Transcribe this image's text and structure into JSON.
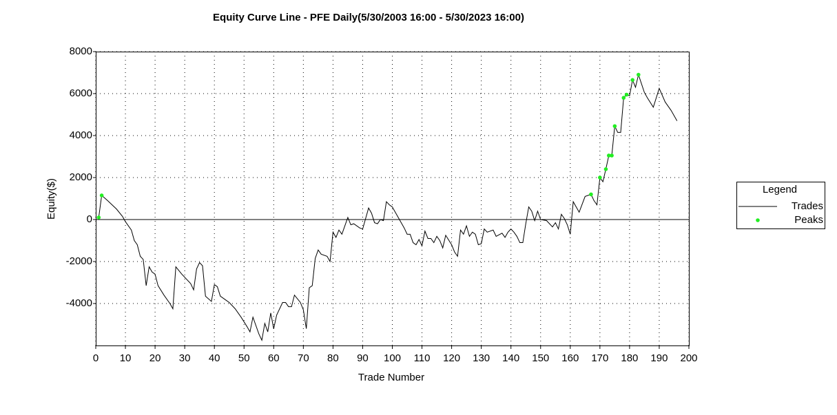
{
  "chart_data": {
    "type": "line",
    "title": "Equity Curve Line - PFE Daily(5/30/2003 16:00 - 5/30/2023 16:00)",
    "x_label": "Trade Number",
    "y_label": "Equity($)",
    "legend_title": "Legend",
    "legend": "right",
    "grid": true,
    "xlim": [
      0,
      200
    ],
    "xticks": [
      0,
      10,
      20,
      30,
      40,
      50,
      60,
      70,
      80,
      90,
      100,
      110,
      120,
      130,
      140,
      150,
      160,
      170,
      180,
      190,
      200
    ],
    "ylim": [
      -6000,
      8000
    ],
    "yticks": [
      -4000,
      -2000,
      0,
      2000,
      4000,
      6000,
      8000
    ],
    "series": [
      {
        "name": "Trades",
        "type": "line",
        "color": "#000000",
        "x": [
          1,
          2,
          4,
          7,
          9,
          10,
          12,
          13,
          14,
          15,
          16,
          17,
          18,
          19,
          20,
          21,
          23,
          25,
          26,
          27,
          29,
          32,
          33,
          34,
          35,
          36,
          37,
          39,
          40,
          41,
          42,
          44,
          45,
          47,
          49,
          51,
          52,
          53,
          55,
          56,
          57,
          58,
          59,
          60,
          61,
          63,
          64,
          65,
          66,
          67,
          69,
          70,
          71,
          72,
          73,
          74,
          75,
          76,
          78,
          79,
          80,
          81,
          82,
          83,
          85,
          86,
          87,
          89,
          90,
          92,
          93,
          94,
          95,
          96,
          97,
          98,
          99,
          100,
          101,
          102,
          103,
          104,
          105,
          106,
          107,
          108,
          109,
          110,
          111,
          112,
          113,
          114,
          115,
          116,
          117,
          118,
          120,
          121,
          122,
          123,
          124,
          125,
          126,
          127,
          128,
          129,
          130,
          131,
          132,
          134,
          135,
          137,
          138,
          139,
          140,
          141,
          142,
          143,
          144,
          145,
          146,
          147,
          148,
          149,
          150,
          152,
          154,
          155,
          156,
          157,
          158,
          159,
          160,
          161,
          163,
          165,
          167,
          168,
          169,
          170,
          171,
          172,
          173,
          174,
          175,
          176,
          177,
          178,
          179,
          180,
          181,
          182,
          183,
          185,
          186,
          188,
          190,
          192,
          194,
          196
        ],
        "values": [
          100,
          1150,
          900,
          500,
          150,
          -100,
          -500,
          -1000,
          -1200,
          -1750,
          -1900,
          -3150,
          -2250,
          -2500,
          -2600,
          -3150,
          -3600,
          -4000,
          -4250,
          -2250,
          -2600,
          -3050,
          -3350,
          -2350,
          -2050,
          -2200,
          -3650,
          -3900,
          -3100,
          -3200,
          -3650,
          -3850,
          -3950,
          -4250,
          -4650,
          -5100,
          -5350,
          -4650,
          -5450,
          -5750,
          -4950,
          -5350,
          -4450,
          -5200,
          -4550,
          -3950,
          -3950,
          -4150,
          -4150,
          -3600,
          -3950,
          -4300,
          -5200,
          -3250,
          -3150,
          -1850,
          -1450,
          -1650,
          -1750,
          -2000,
          -600,
          -850,
          -500,
          -700,
          100,
          -250,
          -200,
          -400,
          -450,
          550,
          300,
          -150,
          -200,
          0,
          -50,
          850,
          700,
          600,
          350,
          100,
          -150,
          -400,
          -700,
          -700,
          -1100,
          -1200,
          -950,
          -1250,
          -550,
          -900,
          -900,
          -1100,
          -800,
          -1000,
          -1350,
          -750,
          -1200,
          -1550,
          -1750,
          -500,
          -700,
          -300,
          -800,
          -600,
          -700,
          -1200,
          -1150,
          -450,
          -600,
          -500,
          -800,
          -650,
          -850,
          -600,
          -450,
          -600,
          -800,
          -1100,
          -1100,
          -200,
          600,
          400,
          -50,
          400,
          0,
          -50,
          -350,
          -150,
          -450,
          250,
          50,
          -250,
          -700,
          850,
          350,
          1100,
          1200,
          900,
          700,
          2000,
          1800,
          2400,
          3050,
          3050,
          4450,
          4150,
          4150,
          5800,
          5950,
          5900,
          6650,
          6300,
          6900,
          6050,
          5800,
          5350,
          6250,
          5600,
          5200,
          4700
        ]
      },
      {
        "name": "Peaks",
        "type": "scatter",
        "color": "#22ee22",
        "x": [
          1,
          2,
          167,
          170,
          172,
          173,
          174,
          175,
          178,
          179,
          181,
          183
        ],
        "values": [
          100,
          1150,
          1200,
          2000,
          2400,
          3050,
          3050,
          4450,
          5800,
          5950,
          6650,
          6900
        ]
      }
    ]
  }
}
